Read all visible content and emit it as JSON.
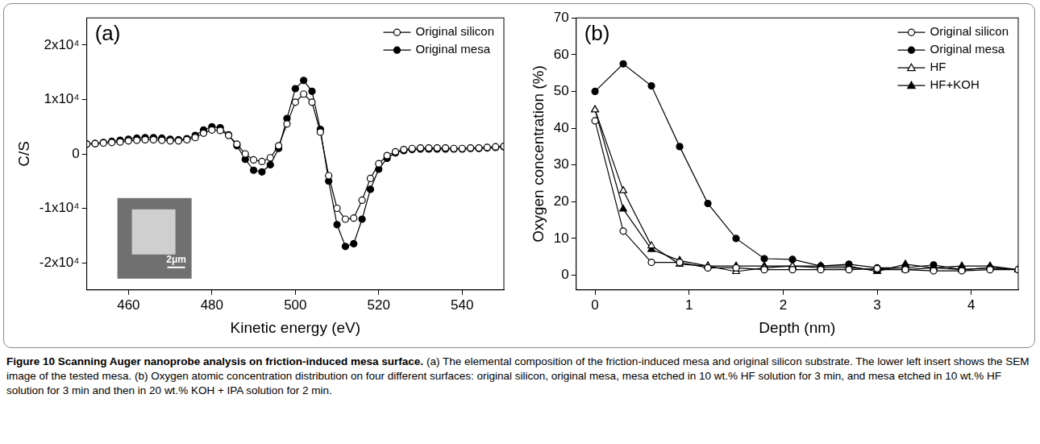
{
  "caption": {
    "title": "Figure 10 Scanning Auger nanoprobe analysis on friction-induced mesa surface.",
    "text": "(a) The elemental composition of the friction-induced mesa and original silicon substrate. The lower left insert shows the SEM image of the tested mesa. (b) Oxygen atomic concentration distribution on four different surfaces: original silicon, original mesa, mesa etched in 10 wt.% HF solution for 3 min, and mesa etched in 10 wt.% HF solution for 3 min and then in 20 wt.% KOH + IPA solution for 2 min."
  },
  "chart_data": [
    {
      "type": "line",
      "panel": "(a)",
      "x_label": "Kinetic energy (eV)",
      "y_label": "C/S",
      "x": [
        450,
        452,
        454,
        456,
        458,
        460,
        462,
        464,
        466,
        468,
        470,
        472,
        474,
        476,
        478,
        480,
        482,
        484,
        486,
        488,
        490,
        492,
        494,
        496,
        498,
        500,
        502,
        504,
        506,
        508,
        510,
        512,
        514,
        516,
        518,
        520,
        522,
        524,
        526,
        528,
        530,
        532,
        534,
        536,
        538,
        540,
        542,
        544,
        546,
        548,
        550
      ],
      "xlim": [
        450,
        550
      ],
      "xticks": [
        460,
        480,
        500,
        520,
        540
      ],
      "ylim": [
        -25000,
        25000
      ],
      "yticks": [
        {
          "value": -20000,
          "label": "-2x10⁴"
        },
        {
          "value": -10000,
          "label": "-1x10⁴"
        },
        0,
        {
          "value": 10000,
          "label": "1x10⁴"
        },
        {
          "value": 20000,
          "label": "2x10⁴"
        }
      ],
      "grid": false,
      "legend": "top-right",
      "series": [
        {
          "name": "Original silicon",
          "color": "#000000",
          "marker": "open_circle",
          "values": [
            1800,
            1900,
            2000,
            2100,
            2200,
            2400,
            2500,
            2600,
            2600,
            2500,
            2400,
            2400,
            2600,
            3000,
            3800,
            4400,
            4300,
            3400,
            1800,
            0,
            -1100,
            -1400,
            -700,
            1500,
            5500,
            9500,
            11000,
            9500,
            4000,
            -4000,
            -10000,
            -12000,
            -11800,
            -8500,
            -4500,
            -1800,
            -300,
            400,
            800,
            1000,
            1100,
            1100,
            1100,
            1100,
            1000,
            1000,
            1100,
            1100,
            1200,
            1300,
            1400
          ]
        },
        {
          "name": "Original mesa",
          "color": "#000000",
          "marker": "filled_circle",
          "values": [
            1800,
            1900,
            2100,
            2300,
            2500,
            2700,
            2900,
            3000,
            3000,
            2900,
            2700,
            2600,
            2800,
            3400,
            4400,
            5000,
            4800,
            3500,
            1500,
            -1000,
            -3000,
            -3300,
            -2000,
            1000,
            6500,
            12000,
            13500,
            11500,
            4500,
            -5000,
            -13000,
            -17000,
            -16500,
            -12000,
            -6500,
            -2800,
            -800,
            200,
            600,
            800,
            900,
            900,
            900,
            900,
            900,
            900,
            1000,
            1000,
            1100,
            1200,
            1300
          ]
        }
      ],
      "inset": {
        "scale_bar": "2μm"
      }
    },
    {
      "type": "line",
      "panel": "(b)",
      "x_label": "Depth (nm)",
      "y_label": "Oxygen concentration (%)",
      "x": [
        0,
        0.3,
        0.6,
        0.9,
        1.2,
        1.5,
        1.8,
        2.1,
        2.4,
        2.7,
        3.0,
        3.3,
        3.6,
        3.9,
        4.2,
        4.5
      ],
      "xlim": [
        -0.2,
        4.5
      ],
      "xticks": [
        0,
        1,
        2,
        3,
        4
      ],
      "ylim": [
        -4,
        70
      ],
      "yticks": [
        0,
        10,
        20,
        30,
        40,
        50,
        60,
        70
      ],
      "grid": false,
      "legend": "top-right",
      "series": [
        {
          "name": "Original silicon",
          "color": "#000000",
          "marker": "open_circle",
          "values": [
            42,
            12,
            3.5,
            3.5,
            2,
            2,
            1.5,
            1.5,
            1.5,
            1.5,
            1.8,
            1.5,
            1.2,
            1.2,
            1.5,
            1.5
          ]
        },
        {
          "name": "Original mesa",
          "color": "#000000",
          "marker": "filled_circle",
          "values": [
            50,
            57.5,
            51.5,
            35,
            19.5,
            10,
            4.5,
            4.3,
            2.5,
            3,
            2,
            2,
            2.8,
            1.5,
            2,
            1.5
          ]
        },
        {
          "name": "HF",
          "color": "#000000",
          "marker": "open_triangle",
          "values": [
            45,
            23,
            8,
            3,
            2.5,
            1,
            2,
            2.5,
            2,
            2,
            1.5,
            1.5,
            2,
            1.5,
            2,
            1.5
          ]
        },
        {
          "name": "HF+KOH",
          "color": "#000000",
          "marker": "filled_triangle",
          "values": [
            45,
            18,
            7,
            4,
            2.5,
            2.5,
            2.5,
            2.5,
            2.5,
            2.5,
            1,
            3,
            2,
            2.5,
            2.5,
            1.5
          ]
        }
      ]
    }
  ]
}
